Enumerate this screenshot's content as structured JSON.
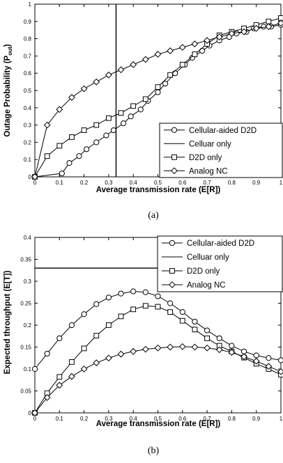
{
  "chart_data": [
    {
      "type": "line",
      "caption": "(a)",
      "xlabel": "Average transmission rate (E[R])",
      "ylabel_main": "Outage Probability (P",
      "ylabel_sub": "out",
      "ylabel_end": ")",
      "xlim": [
        0,
        1
      ],
      "ylim": [
        0,
        1
      ],
      "xticks": [
        "0",
        "0.1",
        "0.2",
        "0.3",
        "0.4",
        "0.5",
        "0.6",
        "0.7",
        "0.8",
        "0.9",
        "1"
      ],
      "yticks": [
        "0",
        "0.1",
        "0.2",
        "0.3",
        "0.4",
        "0.5",
        "0.6",
        "0.7",
        "0.8",
        "0.9",
        "1"
      ],
      "grid": false,
      "legend_position": "bottom-right",
      "series": [
        {
          "name": "Cellular-aided D2D",
          "marker": "circle",
          "x": [
            0,
            0.11,
            0.14,
            0.18,
            0.21,
            0.25,
            0.29,
            0.32,
            0.36,
            0.39,
            0.43,
            0.46,
            0.5,
            0.53,
            0.57,
            0.61,
            0.64,
            0.68,
            0.71,
            0.75,
            0.79,
            0.82,
            0.86,
            0.89,
            0.93,
            0.96,
            1.0
          ],
          "y": [
            0,
            0.02,
            0.08,
            0.12,
            0.16,
            0.2,
            0.24,
            0.27,
            0.31,
            0.35,
            0.39,
            0.44,
            0.49,
            0.54,
            0.6,
            0.65,
            0.69,
            0.73,
            0.76,
            0.79,
            0.81,
            0.83,
            0.84,
            0.86,
            0.87,
            0.87,
            0.88
          ]
        },
        {
          "name": "Celluar only",
          "marker": "none",
          "x": [
            0.33,
            0.33
          ],
          "y": [
            0,
            1
          ]
        },
        {
          "name": "D2D only",
          "marker": "square",
          "x": [
            0,
            0.05,
            0.1,
            0.15,
            0.2,
            0.25,
            0.3,
            0.35,
            0.4,
            0.45,
            0.5,
            0.55,
            0.6,
            0.65,
            0.7,
            0.75,
            0.8,
            0.85,
            0.9,
            0.95,
            1.0
          ],
          "y": [
            0,
            0.12,
            0.18,
            0.23,
            0.27,
            0.3,
            0.34,
            0.37,
            0.41,
            0.45,
            0.52,
            0.59,
            0.65,
            0.71,
            0.77,
            0.82,
            0.84,
            0.86,
            0.88,
            0.9,
            0.92
          ]
        },
        {
          "name": "Analog NC",
          "marker": "diamond",
          "x": [
            0,
            0.05,
            0.1,
            0.15,
            0.2,
            0.25,
            0.3,
            0.35,
            0.4,
            0.45,
            0.5,
            0.55,
            0.6,
            0.65,
            0.7,
            0.75,
            0.8,
            0.85,
            0.9,
            0.95,
            1.0
          ],
          "y": [
            0,
            0.3,
            0.39,
            0.46,
            0.51,
            0.55,
            0.59,
            0.62,
            0.65,
            0.68,
            0.71,
            0.73,
            0.75,
            0.77,
            0.79,
            0.81,
            0.83,
            0.84,
            0.86,
            0.87,
            0.89
          ]
        }
      ]
    },
    {
      "type": "line",
      "caption": "(b)",
      "xlabel": "Average transmission rate (E[R])",
      "ylabel_main": "Expected throughput (E[T])",
      "ylabel_sub": "",
      "ylabel_end": "",
      "xlim": [
        0,
        1
      ],
      "ylim": [
        0,
        0.4
      ],
      "xticks": [
        "0",
        "0.1",
        "0.2",
        "0.3",
        "0.4",
        "0.5",
        "0.6",
        "0.7",
        "0.8",
        "0.9",
        "1"
      ],
      "yticks": [
        "0",
        "0.05",
        "0.1",
        "0.15",
        "0.2",
        "0.25",
        "0.3",
        "0.35",
        "0.4"
      ],
      "grid": false,
      "legend_position": "top-right",
      "series": [
        {
          "name": "Cellular-aided D2D",
          "marker": "circle",
          "x": [
            0,
            0.05,
            0.1,
            0.15,
            0.2,
            0.25,
            0.3,
            0.35,
            0.4,
            0.45,
            0.5,
            0.55,
            0.6,
            0.65,
            0.7,
            0.75,
            0.8,
            0.85,
            0.9,
            0.95,
            1.0
          ],
          "y": [
            0.1,
            0.135,
            0.17,
            0.2,
            0.225,
            0.248,
            0.263,
            0.272,
            0.277,
            0.275,
            0.266,
            0.25,
            0.23,
            0.208,
            0.188,
            0.17,
            0.153,
            0.14,
            0.131,
            0.125,
            0.12
          ]
        },
        {
          "name": "Celluar only",
          "marker": "none",
          "x": [
            0,
            1
          ],
          "y": [
            0.33,
            0.33
          ]
        },
        {
          "name": "D2D only",
          "marker": "square",
          "x": [
            0,
            0.05,
            0.1,
            0.15,
            0.2,
            0.25,
            0.3,
            0.35,
            0.4,
            0.45,
            0.5,
            0.55,
            0.6,
            0.65,
            0.7,
            0.75,
            0.8,
            0.85,
            0.9,
            0.95,
            1.0
          ],
          "y": [
            0,
            0.045,
            0.082,
            0.116,
            0.147,
            0.176,
            0.2,
            0.22,
            0.236,
            0.244,
            0.242,
            0.23,
            0.21,
            0.19,
            0.17,
            0.153,
            0.14,
            0.126,
            0.112,
            0.1,
            0.087
          ]
        },
        {
          "name": "Analog NC",
          "marker": "diamond",
          "x": [
            0,
            0.05,
            0.1,
            0.15,
            0.2,
            0.25,
            0.3,
            0.35,
            0.4,
            0.45,
            0.5,
            0.55,
            0.6,
            0.65,
            0.7,
            0.75,
            0.8,
            0.85,
            0.9,
            0.95,
            1.0
          ],
          "y": [
            0,
            0.035,
            0.063,
            0.083,
            0.1,
            0.114,
            0.125,
            0.134,
            0.14,
            0.145,
            0.148,
            0.15,
            0.151,
            0.15,
            0.148,
            0.144,
            0.138,
            0.128,
            0.118,
            0.106,
            0.094
          ]
        }
      ]
    }
  ]
}
